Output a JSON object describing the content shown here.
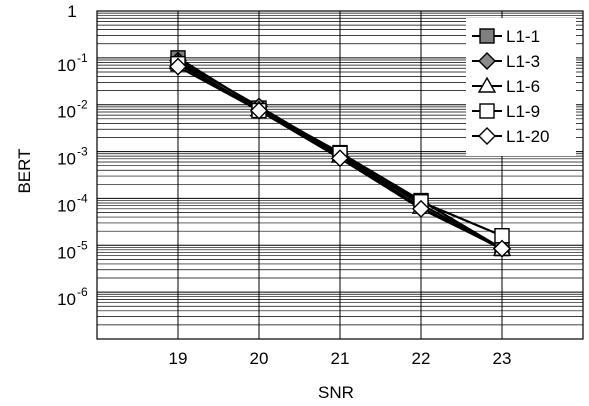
{
  "chart_data": {
    "type": "line",
    "xlabel": "SNR",
    "ylabel": "BERT",
    "x": [
      19,
      20,
      21,
      22,
      23
    ],
    "xlim": [
      18,
      24
    ],
    "ylim": [
      1e-07,
      1
    ],
    "yscale": "log",
    "y_ticks": [
      {
        "value": 1,
        "base": "1",
        "exp": ""
      },
      {
        "value": 0.1,
        "base": "10",
        "exp": "-1"
      },
      {
        "value": 0.01,
        "base": "10",
        "exp": "-2"
      },
      {
        "value": 0.001,
        "base": "10",
        "exp": "-3"
      },
      {
        "value": 0.0001,
        "base": "10",
        "exp": "-4"
      },
      {
        "value": 1e-05,
        "base": "10",
        "exp": "-5"
      },
      {
        "value": 1e-06,
        "base": "10",
        "exp": "-6"
      }
    ],
    "grid": true,
    "legend_position": "top-right",
    "series": [
      {
        "name": "L1-1",
        "marker": "square-filled",
        "values": [
          0.1,
          0.0085,
          0.00095,
          9e-05,
          8.5e-06
        ]
      },
      {
        "name": "L1-3",
        "marker": "diamond-filled",
        "values": [
          0.088,
          0.0092,
          0.00088,
          7.5e-05,
          8.5e-06
        ]
      },
      {
        "name": "L1-6",
        "marker": "triangle-open",
        "values": [
          0.08,
          0.0078,
          0.0008,
          6.5e-05,
          8.2e-06
        ]
      },
      {
        "name": "L1-9",
        "marker": "square-open",
        "values": [
          0.075,
          0.0075,
          0.00092,
          8.5e-05,
          1.6e-05
        ]
      },
      {
        "name": "L1-20",
        "marker": "diamond-open",
        "values": [
          0.065,
          0.0075,
          0.00072,
          6e-05,
          8.5e-06
        ]
      }
    ]
  }
}
